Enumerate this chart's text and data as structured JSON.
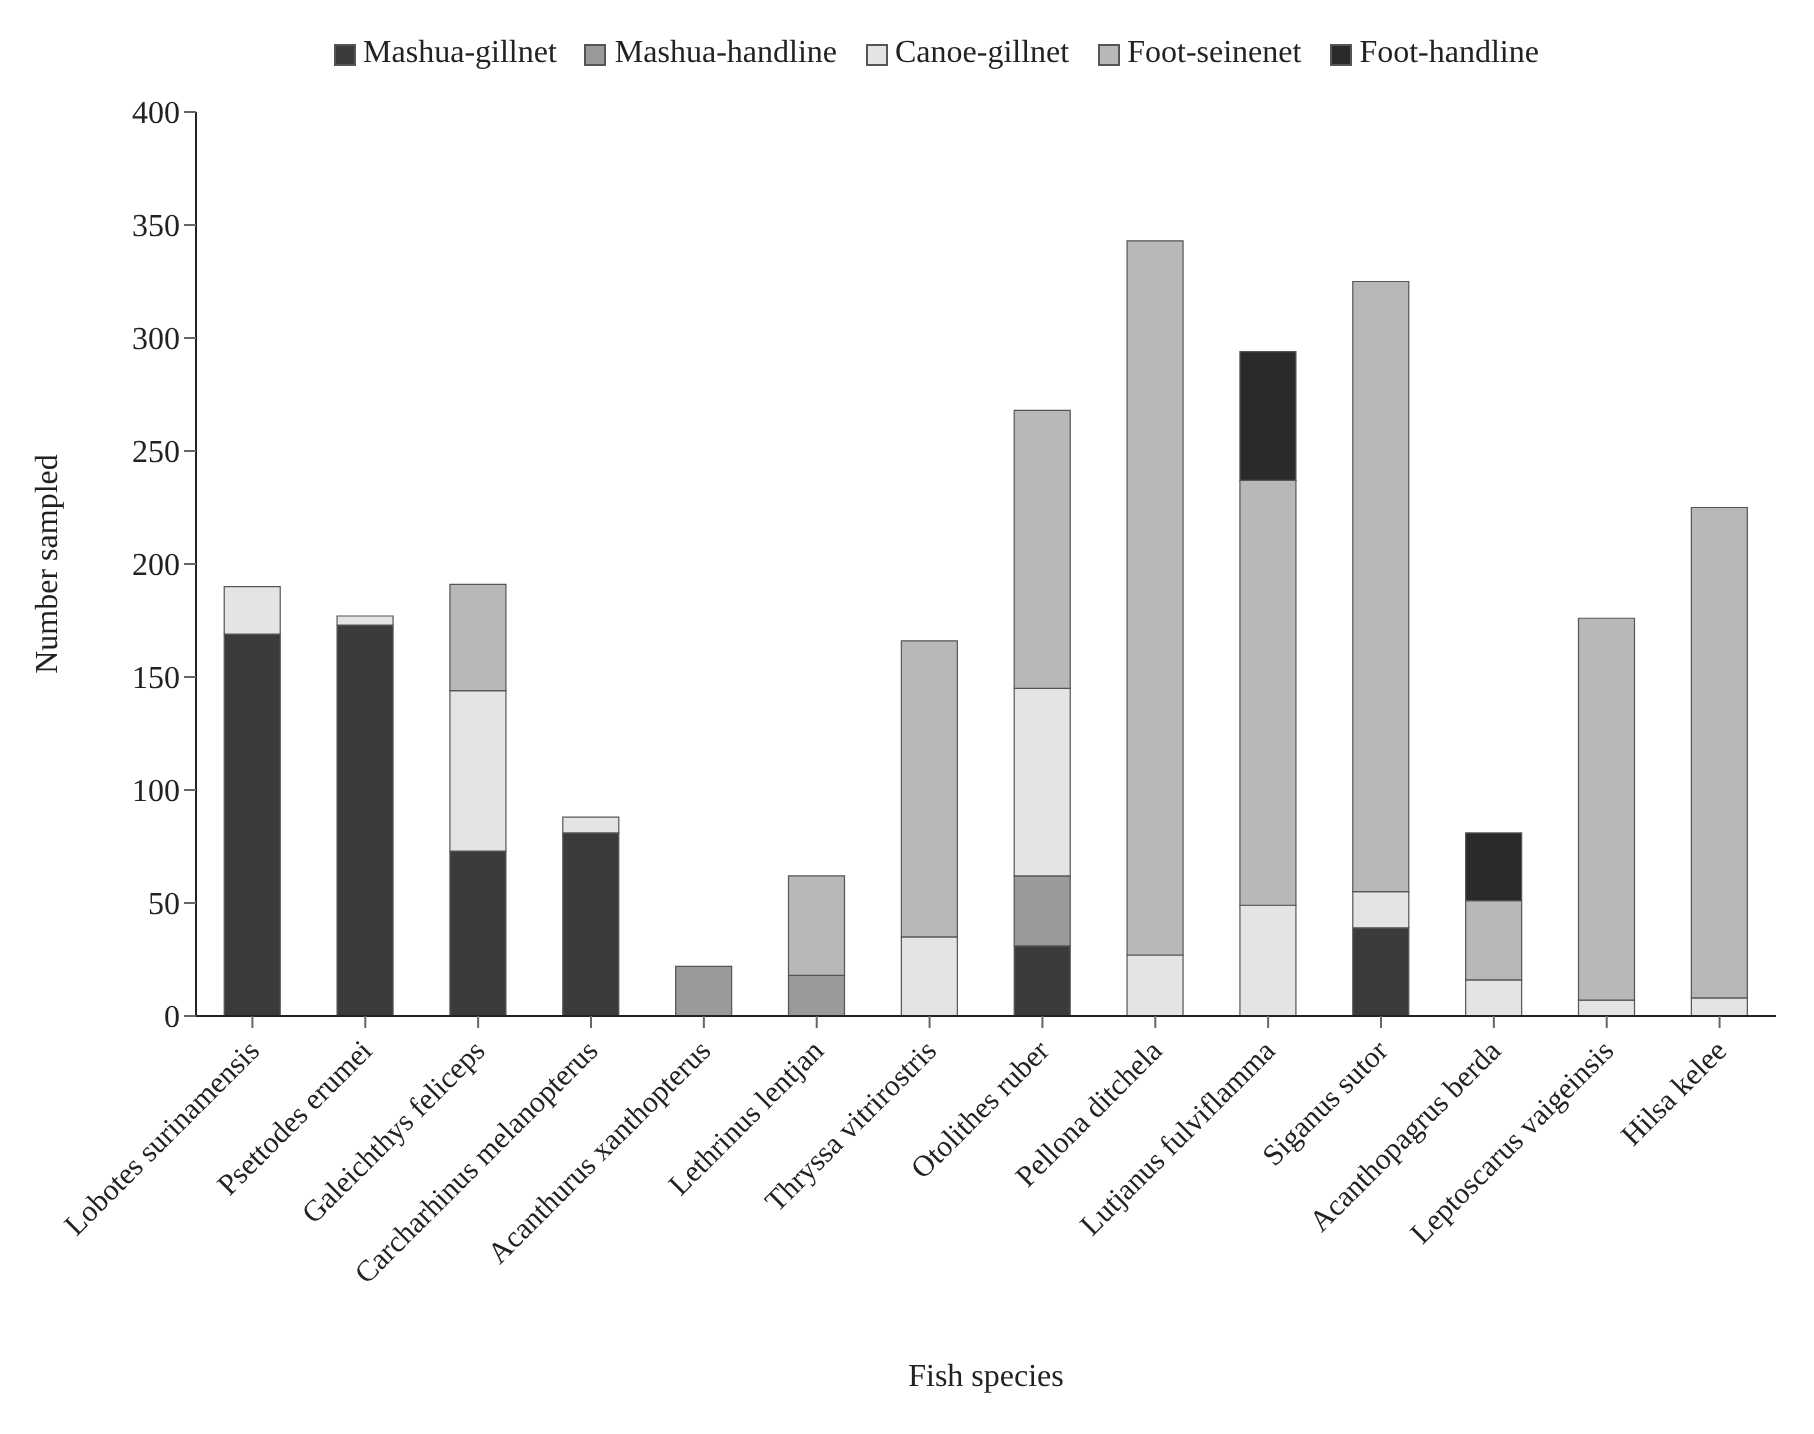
{
  "chart_data": {
    "type": "bar",
    "stacked": true,
    "xlabel": "Fish species",
    "ylabel": "Number sampled",
    "categories": [
      "Lobotes surinamensis",
      "Psettodes erumei",
      "Galeichthys feliceps",
      "Carcharhinus melanopterus",
      "Acanthurus xanthopterus",
      "Lethrinus lentjan",
      "Thryssa vitrirostris",
      "Otolithes ruber",
      "Pellona ditchela",
      "Lutjanus fulviflamma",
      "Siganus sutor",
      "Acanthopagrus berda",
      "Leptoscarus vaigeinsis",
      "Hilsa kelee"
    ],
    "series": [
      {
        "name": "Mashua-gillnet",
        "color": "#3b3b3b",
        "values": [
          169,
          173,
          73,
          81,
          0,
          0,
          0,
          31,
          0,
          0,
          39,
          0,
          0,
          0
        ]
      },
      {
        "name": "Mashua-handline",
        "color": "#9a9a9a",
        "values": [
          0,
          0,
          0,
          0,
          22,
          18,
          0,
          31,
          0,
          0,
          0,
          0,
          0,
          0
        ]
      },
      {
        "name": "Canoe-gillnet",
        "color": "#e4e4e4",
        "values": [
          21,
          4,
          71,
          7,
          0,
          0,
          35,
          83,
          27,
          49,
          16,
          16,
          7,
          8
        ]
      },
      {
        "name": "Foot-seinenet",
        "color": "#b8b8b8",
        "values": [
          0,
          0,
          47,
          0,
          0,
          44,
          131,
          123,
          316,
          188,
          270,
          35,
          169,
          217
        ]
      },
      {
        "name": "Foot-handline",
        "color": "#2a2a2a",
        "values": [
          0,
          0,
          0,
          0,
          0,
          0,
          0,
          0,
          0,
          57,
          0,
          30,
          0,
          0
        ]
      }
    ],
    "ylim": [
      0,
      400
    ],
    "yticks": [
      0,
      50,
      100,
      150,
      200,
      250,
      300,
      350,
      400
    ],
    "legend": "top"
  }
}
